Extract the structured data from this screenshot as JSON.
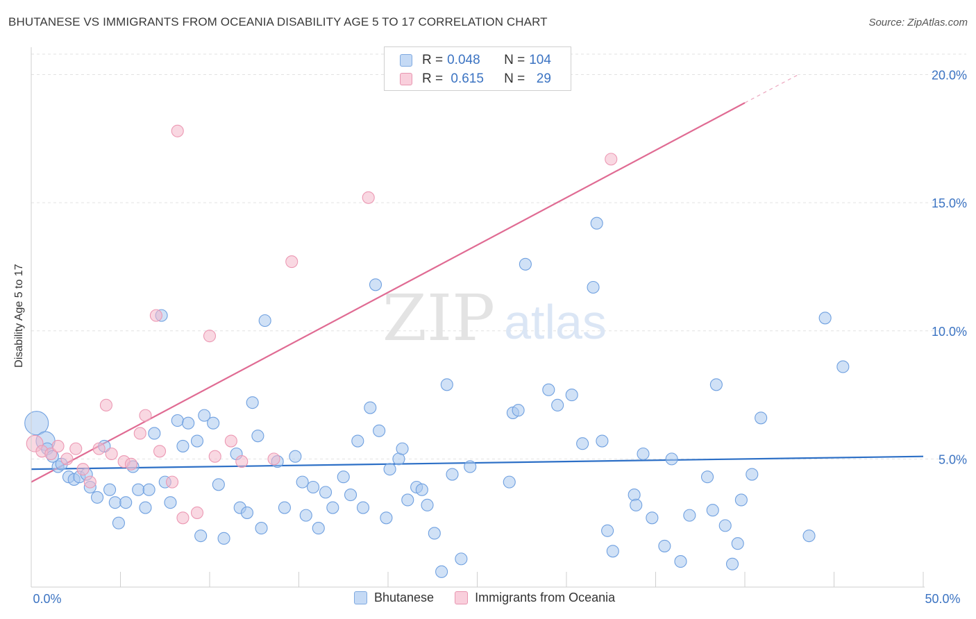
{
  "title": "BHUTANESE VS IMMIGRANTS FROM OCEANIA DISABILITY AGE 5 TO 17 CORRELATION CHART",
  "source": "Source: ZipAtlas.com",
  "watermark": {
    "zip": "ZIP",
    "atlas": "atlas"
  },
  "legend_top": {
    "rows": [
      {
        "r_label": "R = ",
        "r_value": "0.048",
        "n_label": "N = ",
        "n_value": "104",
        "color": "#a9c8ef"
      },
      {
        "r_label": "R = ",
        "r_value": " 0.615",
        "n_label": "N = ",
        "n_value": "  29",
        "color": "#f4b8cb"
      }
    ]
  },
  "legend_bottom": [
    {
      "label": "Bhutanese",
      "color": "#a9c8ef"
    },
    {
      "label": "Immigrants from Oceania",
      "color": "#f4b8cb"
    }
  ],
  "chart_data": {
    "type": "scatter",
    "xlabel": "",
    "ylabel": "Disability Age 5 to 17",
    "xlim": [
      0,
      50
    ],
    "ylim": [
      0,
      20.8
    ],
    "x_tick_labels": [
      "0.0%",
      "50.0%"
    ],
    "y_ticks": [
      5,
      10,
      15,
      20
    ],
    "y_tick_labels": [
      "5.0%",
      "10.0%",
      "15.0%",
      "20.0%"
    ],
    "grid": true,
    "series": [
      {
        "name": "Bhutanese",
        "color": "#6fa0e0",
        "fill": "#a9c8ef",
        "line_color": "#2c6fc6",
        "trend": {
          "x0": 0,
          "y0": 4.6,
          "x1": 50,
          "y1": 5.1
        },
        "points": [
          [
            0.3,
            6.4,
            2
          ],
          [
            0.8,
            5.7,
            1.6
          ],
          [
            0.9,
            5.4,
            1
          ],
          [
            1.2,
            5.1,
            1
          ],
          [
            1.5,
            4.7,
            1
          ],
          [
            1.7,
            4.8,
            1
          ],
          [
            2.1,
            4.3,
            1
          ],
          [
            2.4,
            4.2,
            1
          ],
          [
            2.7,
            4.3,
            1
          ],
          [
            3.1,
            4.4,
            1
          ],
          [
            3.3,
            3.9,
            1
          ],
          [
            3.7,
            3.5,
            1
          ],
          [
            4.1,
            5.5,
            1
          ],
          [
            4.4,
            3.8,
            1
          ],
          [
            4.7,
            3.3,
            1
          ],
          [
            4.9,
            2.5,
            1
          ],
          [
            5.3,
            3.3,
            1
          ],
          [
            5.7,
            4.7,
            1
          ],
          [
            6.0,
            3.8,
            1
          ],
          [
            6.4,
            3.1,
            1
          ],
          [
            6.6,
            3.8,
            1
          ],
          [
            6.9,
            6.0,
            1
          ],
          [
            7.3,
            10.6,
            1
          ],
          [
            7.5,
            4.1,
            1
          ],
          [
            7.8,
            3.3,
            1
          ],
          [
            8.2,
            6.5,
            1
          ],
          [
            8.5,
            5.5,
            1
          ],
          [
            8.8,
            6.4,
            1
          ],
          [
            9.3,
            5.7,
            1
          ],
          [
            9.5,
            2.0,
            1
          ],
          [
            9.7,
            6.7,
            1
          ],
          [
            10.2,
            6.4,
            1
          ],
          [
            10.5,
            4.0,
            1
          ],
          [
            10.8,
            1.9,
            1
          ],
          [
            11.5,
            5.2,
            1
          ],
          [
            11.7,
            3.1,
            1
          ],
          [
            12.1,
            2.9,
            1
          ],
          [
            12.4,
            7.2,
            1
          ],
          [
            12.7,
            5.9,
            1
          ],
          [
            12.9,
            2.3,
            1
          ],
          [
            13.1,
            10.4,
            1
          ],
          [
            13.8,
            4.9,
            1
          ],
          [
            14.2,
            3.1,
            1
          ],
          [
            14.8,
            5.1,
            1
          ],
          [
            15.2,
            4.1,
            1
          ],
          [
            15.4,
            2.8,
            1
          ],
          [
            15.8,
            3.9,
            1
          ],
          [
            16.1,
            2.3,
            1
          ],
          [
            16.5,
            3.7,
            1
          ],
          [
            16.9,
            3.1,
            1
          ],
          [
            17.5,
            4.3,
            1
          ],
          [
            17.9,
            3.6,
            1
          ],
          [
            18.3,
            5.7,
            1
          ],
          [
            18.6,
            3.1,
            1
          ],
          [
            19.0,
            7.0,
            1
          ],
          [
            19.3,
            11.8,
            1
          ],
          [
            19.5,
            6.1,
            1
          ],
          [
            19.9,
            2.7,
            1
          ],
          [
            20.1,
            4.6,
            1
          ],
          [
            20.6,
            5.0,
            1
          ],
          [
            20.8,
            5.4,
            1
          ],
          [
            21.1,
            3.4,
            1
          ],
          [
            21.6,
            3.9,
            1
          ],
          [
            21.9,
            3.8,
            1
          ],
          [
            22.2,
            3.2,
            1
          ],
          [
            22.6,
            2.1,
            1
          ],
          [
            23.0,
            0.6,
            1
          ],
          [
            23.3,
            7.9,
            1
          ],
          [
            23.6,
            4.4,
            1
          ],
          [
            24.1,
            1.1,
            1
          ],
          [
            24.6,
            4.7,
            1
          ],
          [
            26.8,
            4.1,
            1
          ],
          [
            27.0,
            6.8,
            1
          ],
          [
            27.3,
            6.9,
            1
          ],
          [
            27.7,
            12.6,
            1
          ],
          [
            29.0,
            7.7,
            1
          ],
          [
            29.5,
            7.1,
            1
          ],
          [
            30.3,
            7.5,
            1
          ],
          [
            30.9,
            5.6,
            1
          ],
          [
            31.5,
            11.7,
            1
          ],
          [
            31.7,
            14.2,
            1
          ],
          [
            32.0,
            5.7,
            1
          ],
          [
            32.3,
            2.2,
            1
          ],
          [
            32.6,
            1.4,
            1
          ],
          [
            33.8,
            3.6,
            1
          ],
          [
            33.9,
            3.2,
            1
          ],
          [
            34.3,
            5.2,
            1
          ],
          [
            34.8,
            2.7,
            1
          ],
          [
            35.5,
            1.6,
            1
          ],
          [
            35.9,
            5.0,
            1
          ],
          [
            36.4,
            1.0,
            1
          ],
          [
            36.9,
            2.8,
            1
          ],
          [
            37.9,
            4.3,
            1
          ],
          [
            38.2,
            3.0,
            1
          ],
          [
            38.4,
            7.9,
            1
          ],
          [
            38.9,
            2.4,
            1
          ],
          [
            39.3,
            0.9,
            1
          ],
          [
            39.6,
            1.7,
            1
          ],
          [
            39.8,
            3.4,
            1
          ],
          [
            40.4,
            4.4,
            1
          ],
          [
            40.9,
            6.6,
            1
          ],
          [
            43.6,
            2.0,
            1
          ],
          [
            44.5,
            10.5,
            1
          ],
          [
            45.5,
            8.6,
            1
          ]
        ]
      },
      {
        "name": "Immigrants from Oceania",
        "color": "#ec98b3",
        "fill": "#f4b8cb",
        "line_color": "#e06b93",
        "trend": {
          "x0": 0,
          "y0": 4.1,
          "x1": 40,
          "y1": 18.9,
          "dash_to_x": 43.0,
          "dash_to_y": 20.0
        },
        "points": [
          [
            0.2,
            5.6,
            1.4
          ],
          [
            0.6,
            5.3,
            1
          ],
          [
            1.1,
            5.2,
            1
          ],
          [
            1.5,
            5.5,
            1
          ],
          [
            2.0,
            5.0,
            1
          ],
          [
            2.5,
            5.4,
            1
          ],
          [
            2.9,
            4.6,
            1
          ],
          [
            3.3,
            4.1,
            1
          ],
          [
            3.8,
            5.4,
            1
          ],
          [
            4.2,
            7.1,
            1
          ],
          [
            4.5,
            5.2,
            1
          ],
          [
            5.2,
            4.9,
            1
          ],
          [
            5.6,
            4.8,
            1
          ],
          [
            6.1,
            6.0,
            1
          ],
          [
            6.4,
            6.7,
            1
          ],
          [
            7.0,
            10.6,
            1
          ],
          [
            7.2,
            5.3,
            1
          ],
          [
            7.9,
            4.1,
            1
          ],
          [
            8.2,
            17.8,
            1
          ],
          [
            8.5,
            2.7,
            1
          ],
          [
            9.3,
            2.9,
            1
          ],
          [
            10.0,
            9.8,
            1
          ],
          [
            10.3,
            5.1,
            1
          ],
          [
            11.2,
            5.7,
            1
          ],
          [
            11.8,
            4.9,
            1
          ],
          [
            13.6,
            5.0,
            1
          ],
          [
            14.6,
            12.7,
            1
          ],
          [
            18.9,
            15.2,
            1
          ],
          [
            32.5,
            16.7,
            1
          ]
        ]
      }
    ]
  }
}
